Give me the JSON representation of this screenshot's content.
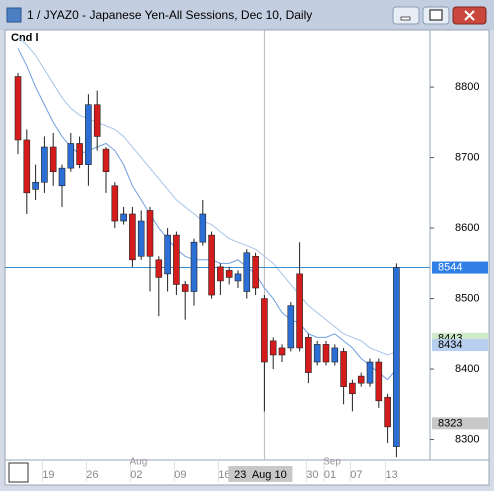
{
  "window": {
    "title": "1 / JYAZ0 - Japanese Yen-All Sessions, Dec 10, Daily"
  },
  "chart_data": {
    "type": "candlestick",
    "label": "Cnd l",
    "categories": [
      null,
      null,
      null,
      "19",
      null,
      null,
      null,
      null,
      "26",
      null,
      null,
      null,
      null,
      "02",
      null,
      null,
      null,
      null,
      "09",
      null,
      null,
      null,
      null,
      "16",
      null,
      null,
      null,
      null,
      "23  Aug 10",
      null,
      null,
      null,
      null,
      "30",
      null,
      "01",
      null,
      null,
      "07",
      null,
      null,
      null,
      "13",
      null
    ],
    "month_labels": [
      null,
      null,
      null,
      null,
      null,
      null,
      null,
      null,
      null,
      null,
      null,
      null,
      null,
      "Aug",
      null,
      null,
      null,
      null,
      null,
      null,
      null,
      null,
      null,
      null,
      null,
      null,
      null,
      null,
      null,
      null,
      null,
      null,
      null,
      null,
      null,
      "Sep",
      null,
      null,
      null,
      null,
      null,
      null,
      null,
      null
    ],
    "open": [
      8815,
      8725,
      8655,
      8665,
      8715,
      8660,
      8685,
      8720,
      8690,
      8775,
      8712,
      8660,
      8610,
      8620,
      8560,
      8625,
      8555,
      8535,
      8590,
      8520,
      8510,
      8580,
      8590,
      8545,
      8540,
      8525,
      8510,
      8560,
      8500,
      8440,
      8430,
      8430,
      8535,
      8445,
      8410,
      8435,
      8410,
      8425,
      8380,
      8390,
      8380,
      8410,
      8360,
      8290
    ],
    "high": [
      8820,
      8740,
      8690,
      8730,
      8735,
      8690,
      8735,
      8730,
      8790,
      8795,
      8715,
      8665,
      8630,
      8630,
      8625,
      8630,
      8560,
      8600,
      8595,
      8525,
      8585,
      8640,
      8595,
      8550,
      8545,
      8540,
      8570,
      8565,
      8505,
      8445,
      8435,
      8495,
      8580,
      8450,
      8440,
      8440,
      8435,
      8430,
      8385,
      8395,
      8415,
      8415,
      8365,
      8550
    ],
    "low": [
      8705,
      8620,
      8640,
      8650,
      8660,
      8630,
      8680,
      8685,
      8660,
      8710,
      8650,
      8600,
      8605,
      8545,
      8555,
      8510,
      8475,
      8510,
      8505,
      8470,
      8490,
      8575,
      8500,
      8505,
      8520,
      8515,
      8500,
      8505,
      8340,
      8400,
      8410,
      8425,
      8425,
      8380,
      8405,
      8405,
      8405,
      8350,
      8340,
      8375,
      8375,
      8345,
      8295,
      8275
    ],
    "close": [
      8725,
      8650,
      8665,
      8715,
      8680,
      8685,
      8720,
      8690,
      8775,
      8730,
      8680,
      8610,
      8620,
      8555,
      8610,
      8560,
      8530,
      8590,
      8520,
      8510,
      8580,
      8620,
      8505,
      8525,
      8530,
      8535,
      8565,
      8515,
      8410,
      8420,
      8420,
      8490,
      8430,
      8395,
      8435,
      8410,
      8430,
      8375,
      8365,
      8380,
      8410,
      8355,
      8318,
      8544
    ],
    "up_color": "#2a6ed6",
    "down_color": "#d41c1c",
    "series": [
      {
        "color": "#6f9fe0",
        "values": [
          8855,
          8830,
          8800,
          8775,
          8750,
          8730,
          8715,
          8705,
          8710,
          8715,
          8720,
          8710,
          8690,
          8660,
          8640,
          8620,
          8600,
          8585,
          8570,
          8560,
          8555,
          8555,
          8555,
          8550,
          8550,
          8555,
          8545,
          8535,
          8515,
          8500,
          8480,
          8470,
          8465,
          8450,
          8445,
          8445,
          8450,
          8440,
          8430,
          8415,
          8405,
          8395,
          8385,
          8400
        ]
      },
      {
        "color": "#a9c4e6",
        "values": [
          8870,
          8860,
          8845,
          8825,
          8805,
          8785,
          8770,
          8760,
          8755,
          8750,
          8745,
          8740,
          8730,
          8715,
          8700,
          8685,
          8670,
          8655,
          8640,
          8630,
          8620,
          8610,
          8605,
          8595,
          8585,
          8580,
          8575,
          8570,
          8560,
          8550,
          8535,
          8520,
          8505,
          8490,
          8480,
          8470,
          8460,
          8450,
          8445,
          8440,
          8430,
          8425,
          8420,
          8425
        ]
      }
    ],
    "ylim": [
      8271,
      8881
    ],
    "yticks": [
      8300,
      8400,
      8500,
      8600,
      8700,
      8800
    ],
    "last_line": {
      "value": 8544,
      "color": "#3b8fd0"
    },
    "price_markers": [
      {
        "value": 8544,
        "color": "#2f7fe6",
        "text_color": "#ffffff"
      },
      {
        "value": 8443,
        "color": "#cfeacb",
        "text_color": "#000000"
      },
      {
        "value": 8434,
        "color": "#b8cff0",
        "text_color": "#000000"
      },
      {
        "value": 8323,
        "color": "#c8c8c8",
        "text_color": "#000000"
      }
    ]
  }
}
